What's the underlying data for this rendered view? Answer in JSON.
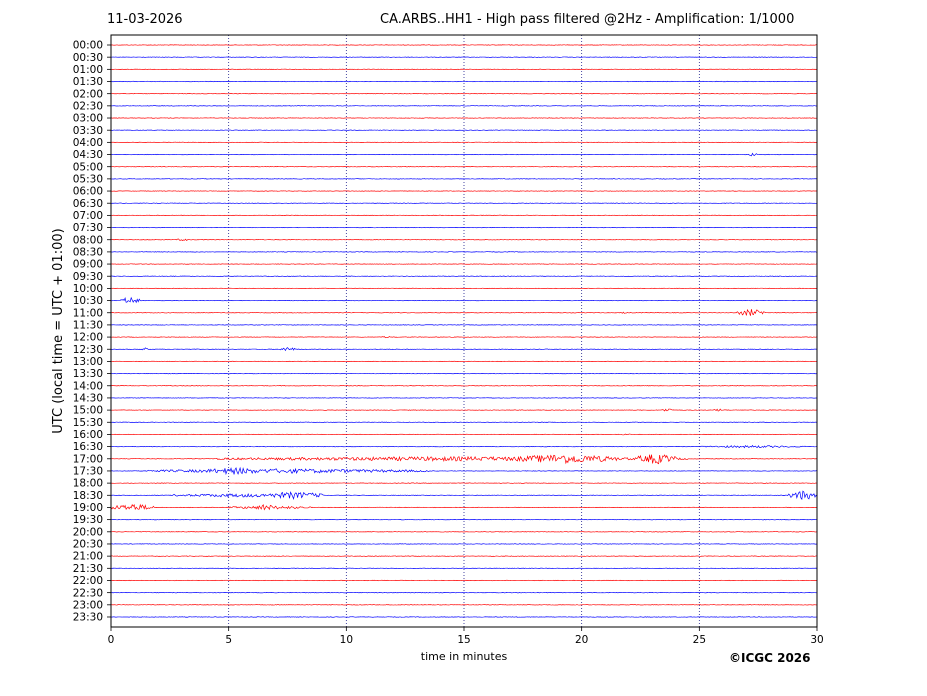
{
  "header": {
    "date": "11-03-2026",
    "title": "CA.ARBS..HH1 - High pass filtered @2Hz - Amplification: 1/1000"
  },
  "footer": {
    "copyright": "©ICGC 2026"
  },
  "chart_data": {
    "type": "line",
    "title": "CA.ARBS..HH1 - High pass filtered @2Hz - Amplification: 1/1000",
    "xlabel": "time in minutes",
    "ylabel": "UTC (local time = UTC + 01:00)",
    "xlim": [
      0,
      30
    ],
    "xticks": [
      0,
      5,
      10,
      15,
      20,
      25,
      30
    ],
    "grid": {
      "vertical_dotted_at": [
        5,
        10,
        15,
        20,
        25
      ]
    },
    "trace_colors": [
      "#ff0000",
      "#0000ff"
    ],
    "rows": [
      "00:00",
      "00:30",
      "01:00",
      "01:30",
      "02:00",
      "02:30",
      "03:00",
      "03:30",
      "04:00",
      "04:30",
      "05:00",
      "05:30",
      "06:00",
      "06:30",
      "07:00",
      "07:30",
      "08:00",
      "08:30",
      "09:00",
      "09:30",
      "10:00",
      "10:30",
      "11:00",
      "11:30",
      "12:00",
      "12:30",
      "13:00",
      "13:30",
      "14:00",
      "14:30",
      "15:00",
      "15:30",
      "16:00",
      "16:30",
      "17:00",
      "17:30",
      "18:00",
      "18:30",
      "19:00",
      "19:30",
      "20:00",
      "20:30",
      "21:00",
      "21:30",
      "22:00",
      "22:30",
      "23:00",
      "23:30"
    ],
    "events": [
      {
        "row": "04:30",
        "t_start": 27.1,
        "t_end": 27.5,
        "amp": 0.15
      },
      {
        "row": "08:00",
        "t_start": 2.8,
        "t_end": 3.3,
        "amp": 0.12
      },
      {
        "row": "10:30",
        "t_start": 0.4,
        "t_end": 1.2,
        "amp": 0.3
      },
      {
        "row": "11:00",
        "t_start": 26.6,
        "t_end": 27.8,
        "amp": 0.3
      },
      {
        "row": "11:00",
        "t_start": 21.7,
        "t_end": 22.0,
        "amp": 0.1
      },
      {
        "row": "12:00",
        "t_start": 11.5,
        "t_end": 11.9,
        "amp": 0.08
      },
      {
        "row": "12:30",
        "t_start": 7.2,
        "t_end": 7.8,
        "amp": 0.2
      },
      {
        "row": "12:30",
        "t_start": 1.3,
        "t_end": 1.6,
        "amp": 0.12
      },
      {
        "row": "15:00",
        "t_start": 23.4,
        "t_end": 23.9,
        "amp": 0.15
      },
      {
        "row": "15:00",
        "t_start": 25.6,
        "t_end": 26.1,
        "amp": 0.12
      },
      {
        "row": "16:00",
        "t_start": 21.7,
        "t_end": 22.1,
        "amp": 0.1
      },
      {
        "row": "16:30",
        "t_start": 25.0,
        "t_end": 29.5,
        "amp": 0.1
      },
      {
        "row": "17:00",
        "t_start": 4.5,
        "t_end": 24.5,
        "amp": 0.18
      },
      {
        "row": "17:00",
        "t_start": 17.0,
        "t_end": 21.5,
        "amp": 0.4
      },
      {
        "row": "17:00",
        "t_start": 22.3,
        "t_end": 24.0,
        "amp": 0.45
      },
      {
        "row": "17:30",
        "t_start": 1.5,
        "t_end": 13.5,
        "amp": 0.18
      },
      {
        "row": "17:30",
        "t_start": 4.0,
        "t_end": 6.5,
        "amp": 0.3
      },
      {
        "row": "18:30",
        "t_start": 2.5,
        "t_end": 9.0,
        "amp": 0.15
      },
      {
        "row": "18:30",
        "t_start": 6.5,
        "t_end": 9.0,
        "amp": 0.3
      },
      {
        "row": "18:30",
        "t_start": 28.8,
        "t_end": 30.0,
        "amp": 0.4
      },
      {
        "row": "19:00",
        "t_start": 0.0,
        "t_end": 1.8,
        "amp": 0.3
      },
      {
        "row": "19:00",
        "t_start": 5.0,
        "t_end": 8.5,
        "amp": 0.15
      },
      {
        "row": "19:00",
        "t_start": 6.2,
        "t_end": 6.9,
        "amp": 0.3
      }
    ]
  }
}
